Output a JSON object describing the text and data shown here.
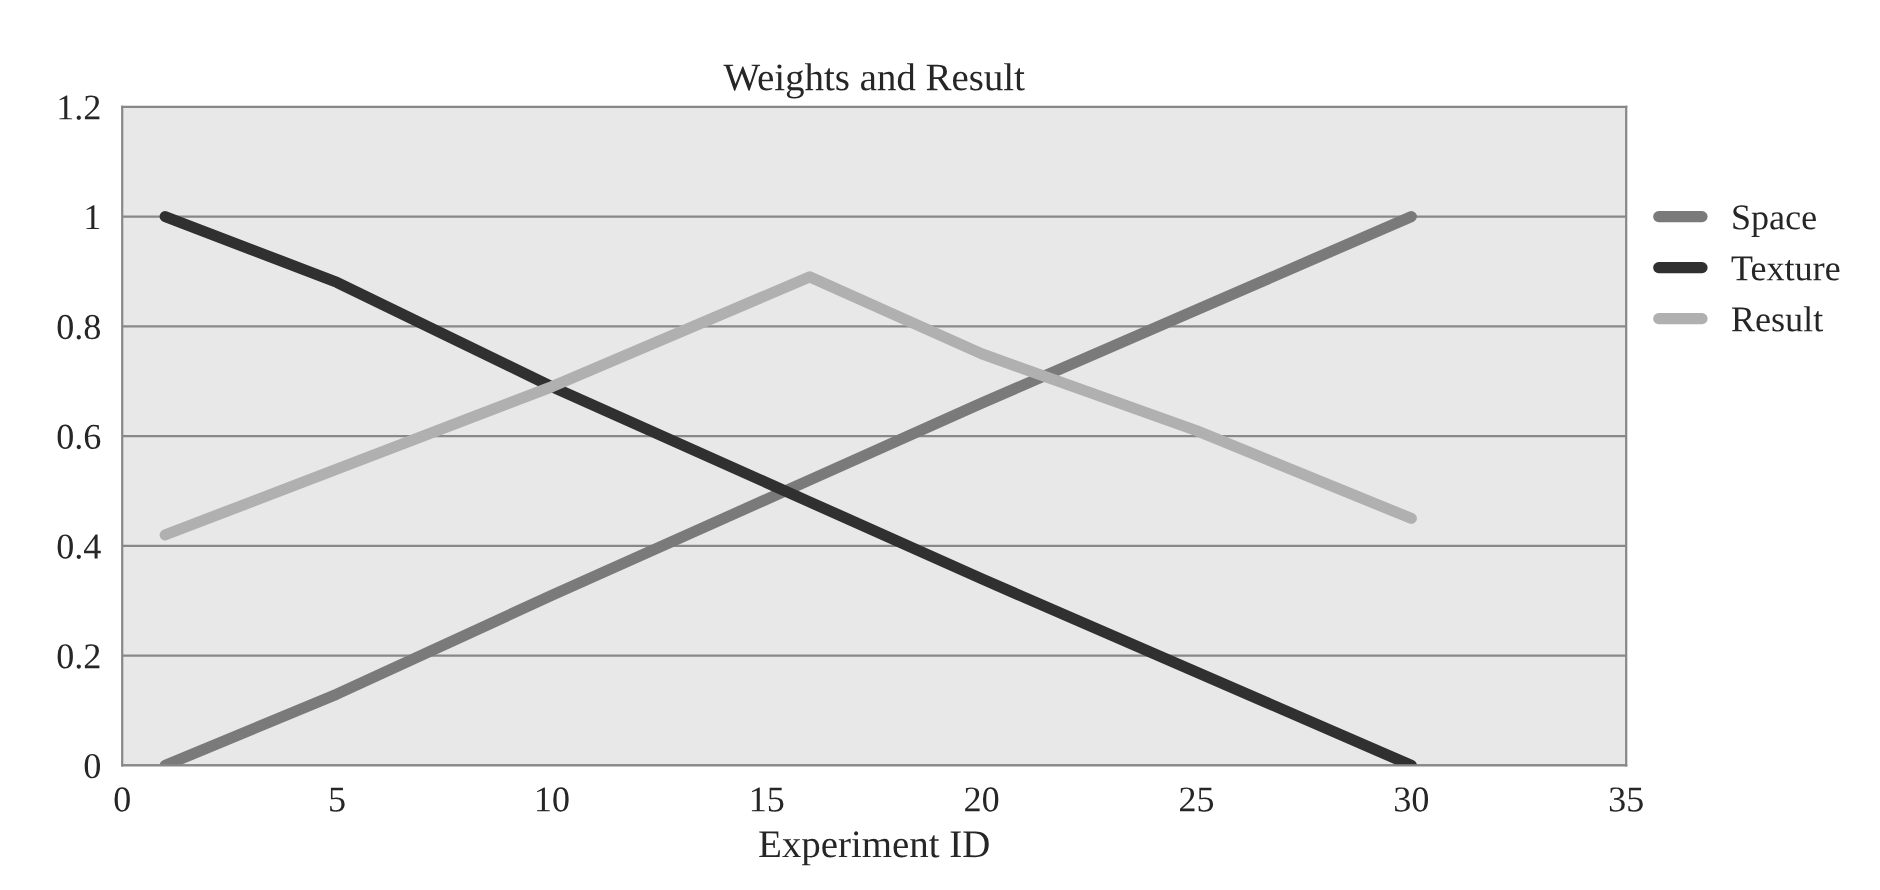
{
  "chart_data": {
    "type": "line",
    "title": "Weights and Result",
    "xlabel": "Experiment ID",
    "series": [
      {
        "name": "Space",
        "color": "#7a7a7a",
        "x": [
          1,
          5,
          10,
          16,
          20,
          25,
          30
        ],
        "values": [
          0,
          0.13,
          0.31,
          0.52,
          0.66,
          0.83,
          1
        ]
      },
      {
        "name": "Texture",
        "color": "#303030",
        "x": [
          1,
          5,
          10,
          16,
          20,
          25,
          30
        ],
        "values": [
          1,
          0.88,
          0.69,
          0.48,
          0.34,
          0.17,
          0
        ]
      },
      {
        "name": "Result",
        "color": "#b0b0b0",
        "x": [
          1,
          10,
          16,
          20,
          25,
          30
        ],
        "values": [
          0.42,
          0.69,
          0.89,
          0.75,
          0.61,
          0.45
        ]
      }
    ],
    "xlim": [
      0,
      35
    ],
    "xticks": [
      0,
      5,
      10,
      15,
      20,
      25,
      30,
      35
    ],
    "ylim": [
      0,
      1.2
    ],
    "yticks": [
      0,
      0.2,
      0.4,
      0.6,
      0.8,
      1,
      1.2
    ],
    "grid": "y",
    "legend": "right",
    "line_style": "solid",
    "marker": "none"
  }
}
